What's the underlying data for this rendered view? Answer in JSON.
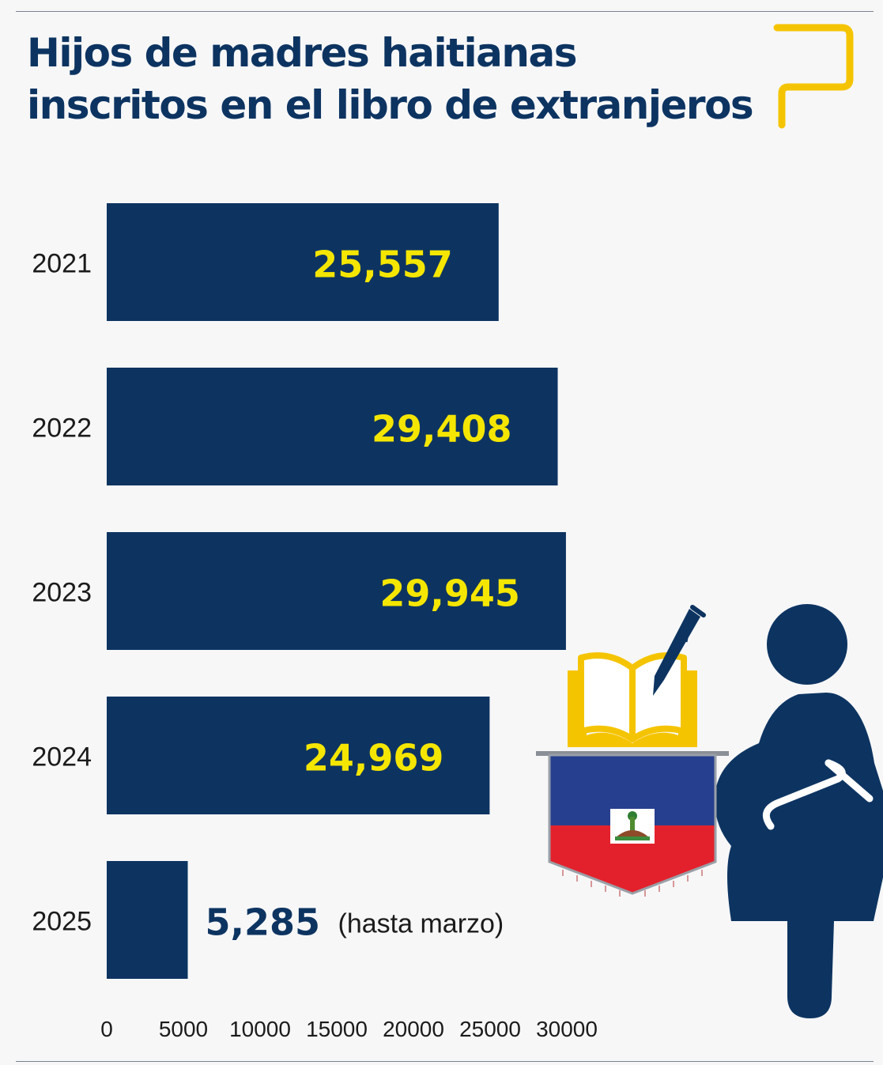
{
  "title": {
    "line1": "Hijos de madres haitianas",
    "line2": "inscritos en el libro de extranjeros"
  },
  "colors": {
    "bar": "#0d3461",
    "value_label": "#f5e600",
    "accent_logo": "#f5c400",
    "flag_blue": "#273f8f",
    "flag_red": "#e3212c"
  },
  "icons": [
    "logo-speech-bubble-icon",
    "book-icon",
    "pen-icon",
    "haiti-flag-pennant-icon",
    "pregnant-woman-icon"
  ],
  "chart_data": {
    "type": "bar",
    "orientation": "horizontal",
    "title": "Hijos de madres haitianas inscritos en el libro de extranjeros",
    "categories": [
      "2021",
      "2022",
      "2023",
      "2024",
      "2025"
    ],
    "values": [
      25557,
      29408,
      29945,
      24969,
      5285
    ],
    "value_labels": [
      "25,557",
      "29,408",
      "29,945",
      "24,969",
      "5,285"
    ],
    "annotations": [
      "",
      "",
      "",
      "",
      "(hasta marzo)"
    ],
    "xlim": [
      0,
      30000
    ],
    "x_ticks": [
      "0",
      "5000",
      "10000",
      "15000",
      "20000",
      "25000",
      "30000"
    ],
    "xlabel": "",
    "ylabel": "",
    "grid": false,
    "legend": "none"
  }
}
